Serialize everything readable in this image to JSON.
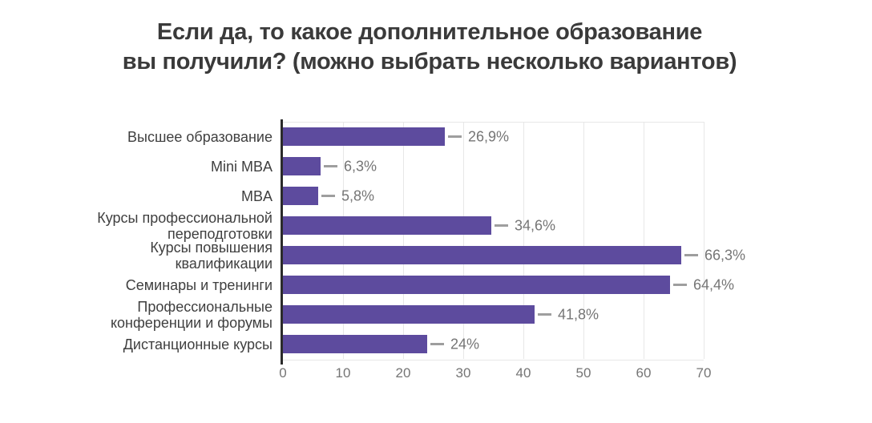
{
  "page": {
    "background": "#ffffff"
  },
  "title_lines": [
    "Если да, то какое дополнительное образование",
    "вы получили? (можно выбрать несколько вариантов)"
  ],
  "chart_data": {
    "type": "bar",
    "orientation": "horizontal",
    "title": "Если да, то какое дополнительное образование вы получили? (можно выбрать несколько вариантов)",
    "categories": [
      "Высшее образование",
      "Mini MBA",
      "MBA",
      "Курсы профессиональной\nпереподготовки",
      "Курсы повышения\nквалификации",
      "Семинары и тренинги",
      "Профессиональные\nконференции и форумы",
      "Дистанционные курсы"
    ],
    "values": [
      26.9,
      6.3,
      5.8,
      34.6,
      66.3,
      64.4,
      41.8,
      24
    ],
    "value_labels": [
      "26,9%",
      "6,3%",
      "5,8%",
      "34,6%",
      "66,3%",
      "64,4%",
      "41,8%",
      "24%"
    ],
    "xlabel": "",
    "ylabel": "",
    "xlim": [
      0,
      70
    ],
    "xticks": [
      0,
      10,
      20,
      30,
      40,
      50,
      60,
      70
    ],
    "grid": "vertical-only",
    "legend": "none",
    "colors": {
      "bar": "#5d4b9e",
      "axis_line": "#2b2b2b",
      "gridline": "#e7e7e7",
      "category_label": "#3f3f3f",
      "value_label": "#757575",
      "tick_label": "#757575",
      "title": "#3a3a3a",
      "leader_line": "#9e9e9e"
    }
  }
}
